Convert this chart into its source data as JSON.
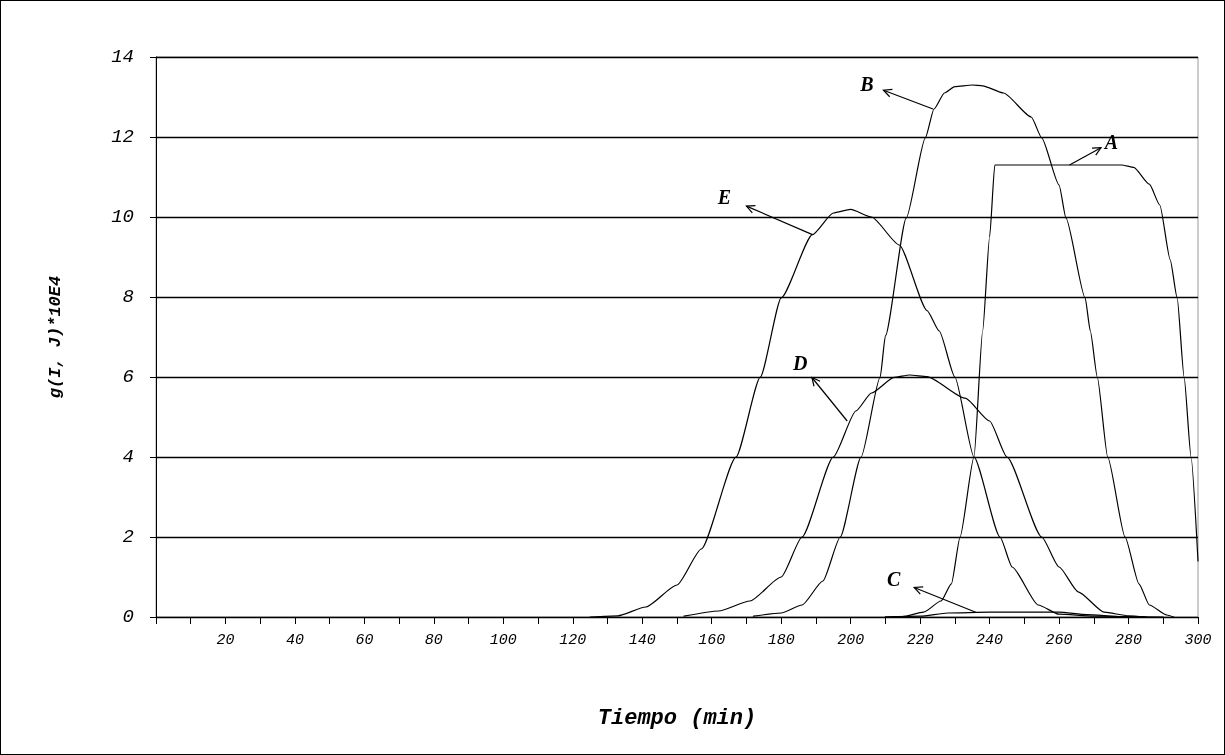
{
  "chart_data": {
    "type": "line",
    "xlabel": "Tiempo (min)",
    "ylabel": "g(I, J)*10E4",
    "xlim": [
      0,
      300
    ],
    "ylim": [
      0,
      14
    ],
    "xticks": [
      {
        "value": 0,
        "label": null
      },
      {
        "value": 10,
        "label": null
      },
      20,
      {
        "value": 30,
        "label": null
      },
      40,
      {
        "value": 50,
        "label": null
      },
      60,
      {
        "value": 70,
        "label": null
      },
      80,
      {
        "value": 90,
        "label": null
      },
      100,
      {
        "value": 110,
        "label": null
      },
      120,
      {
        "value": 130,
        "label": null
      },
      140,
      {
        "value": 150,
        "label": null
      },
      160,
      {
        "value": 170,
        "label": null
      },
      180,
      {
        "value": 190,
        "label": null
      },
      200,
      {
        "value": 210,
        "label": null
      },
      220,
      {
        "value": 230,
        "label": null
      },
      240,
      {
        "value": 250,
        "label": null
      },
      260,
      {
        "value": 270,
        "label": null
      },
      280,
      {
        "value": 290,
        "label": null
      },
      300
    ],
    "yticks": [
      0,
      2,
      4,
      6,
      8,
      10,
      12,
      14
    ],
    "grid": "y",
    "marker": "none",
    "line_style": "solid",
    "series": [
      {
        "color": "#000000",
        "x": [
          210,
          215,
          221,
          226,
          229,
          231.5,
          235.5,
          238,
          240,
          241.5,
          250,
          260,
          270,
          278,
          281.5,
          286,
          289,
          292,
          294,
          296,
          298,
          300
        ],
        "values": [
          0,
          0.01,
          0.12,
          0.4,
          0.83,
          2.0,
          4.0,
          7.15,
          9.5,
          11.3,
          11.3,
          11.3,
          11.3,
          11.3,
          11.24,
          10.82,
          10.3,
          8.93,
          7.98,
          6.0,
          4.0,
          1.4
        ]
      },
      {
        "color": "#000000",
        "x": [
          172,
          180,
          186,
          192,
          197,
          203,
          208.5,
          210,
          216,
          221.5,
          224,
          227,
          230,
          235,
          238,
          244,
          252,
          255,
          260,
          262,
          267.5,
          269,
          271,
          274,
          279,
          283,
          286,
          291,
          293
        ],
        "values": [
          0.02,
          0.1,
          0.3,
          0.9,
          2.0,
          4.0,
          6.0,
          7.03,
          9.97,
          11.98,
          12.7,
          13.1,
          13.26,
          13.3,
          13.28,
          13.1,
          12.5,
          11.98,
          10.8,
          9.97,
          7.98,
          7.15,
          6.0,
          4.0,
          2.0,
          0.83,
          0.3,
          0.05,
          0
        ]
      },
      {
        "color": "#000000",
        "x": [
          210,
          220,
          228,
          240,
          260,
          268,
          278,
          290
        ],
        "values": [
          0,
          0.02,
          0.1,
          0.12,
          0.12,
          0.06,
          0.01,
          0
        ]
      },
      {
        "color": "#000000",
        "x": [
          152,
          162,
          171,
          180,
          186,
          195,
          201.5,
          206,
          212.5,
          217,
          222,
          233,
          240,
          245,
          255,
          260,
          265.5,
          273,
          280,
          285
        ],
        "values": [
          0.02,
          0.15,
          0.4,
          1.0,
          2.0,
          4.0,
          5.15,
          5.6,
          5.99,
          6.05,
          6.01,
          5.47,
          4.9,
          4.0,
          2.0,
          1.25,
          0.63,
          0.12,
          0.03,
          0
        ]
      },
      {
        "color": "#000000",
        "x": [
          125,
          133,
          141,
          150,
          157,
          167,
          174,
          180,
          189,
          195,
          200,
          206,
          214,
          222,
          225.5,
          230,
          235.5,
          243,
          246.5,
          254,
          260,
          270,
          285
        ],
        "values": [
          0,
          0.03,
          0.25,
          0.8,
          1.7,
          4.0,
          6.0,
          7.98,
          9.56,
          10.1,
          10.19,
          10.0,
          9.3,
          7.66,
          7.15,
          6.0,
          4.0,
          2.0,
          1.25,
          0.3,
          0.07,
          0.02,
          0
        ]
      }
    ],
    "annotations": [
      {
        "text": "A",
        "x": 263,
        "y": 11.3
      },
      {
        "text": "B",
        "x": 223.7,
        "y": 12.7
      },
      {
        "text": "C",
        "x": 236,
        "y": 0.12
      },
      {
        "text": "D",
        "x": 199,
        "y": 4.9
      },
      {
        "text": "E",
        "x": 189,
        "y": 9.56
      }
    ]
  }
}
